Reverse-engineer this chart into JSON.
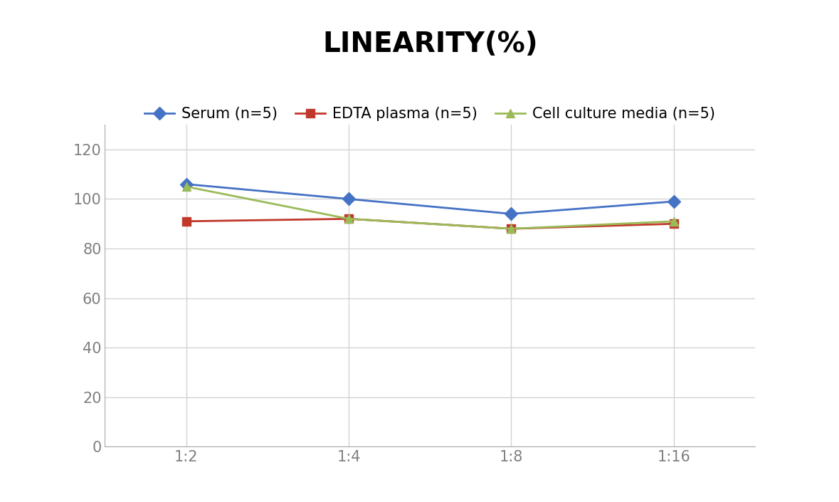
{
  "title": "LINEARITY(%)",
  "title_fontsize": 28,
  "title_fontweight": "bold",
  "x_labels": [
    "1:2",
    "1:4",
    "1:8",
    "1:16"
  ],
  "x_positions": [
    0,
    1,
    2,
    3
  ],
  "series": [
    {
      "label": "Serum (n=5)",
      "values": [
        106,
        100,
        94,
        99
      ],
      "color": "#4472C4",
      "marker": "D",
      "markersize": 9,
      "linewidth": 2
    },
    {
      "label": "EDTA plasma (n=5)",
      "values": [
        91,
        92,
        88,
        90
      ],
      "color": "#C0392B",
      "marker": "s",
      "markersize": 9,
      "linewidth": 2
    },
    {
      "label": "Cell culture media (n=5)",
      "values": [
        105,
        92,
        88,
        91
      ],
      "color": "#9BBB59",
      "marker": "^",
      "markersize": 9,
      "linewidth": 2
    }
  ],
  "ylim": [
    0,
    130
  ],
  "yticks": [
    0,
    20,
    40,
    60,
    80,
    100,
    120
  ],
  "grid_color": "#D3D3D3",
  "background_color": "#FFFFFF",
  "legend_fontsize": 15,
  "tick_fontsize": 15,
  "spine_color": "#AAAAAA"
}
